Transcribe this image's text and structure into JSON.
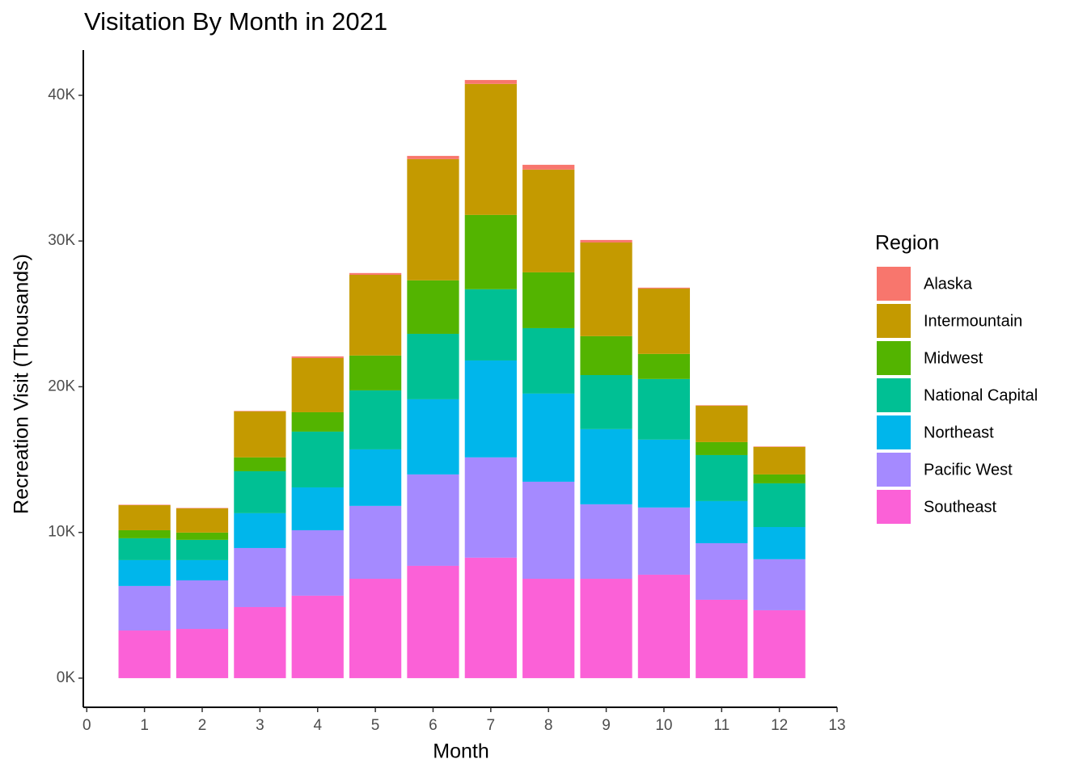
{
  "chart_data": {
    "type": "bar",
    "stacked": true,
    "title": "Visitation By Month in 2021",
    "x_label": "Month",
    "y_label": "Recreation Visit (Thousands)",
    "legend_title": "Region",
    "x": [
      1,
      2,
      3,
      4,
      5,
      6,
      7,
      8,
      9,
      10,
      11,
      12
    ],
    "series": [
      {
        "name": "Southeast",
        "color": "#FB61D7",
        "values": [
          3270,
          3380,
          4880,
          5660,
          6820,
          7710,
          8270,
          6820,
          6820,
          7100,
          5380,
          4660
        ]
      },
      {
        "name": "Pacific West",
        "color": "#A58AFF",
        "values": [
          3055,
          3330,
          4050,
          4490,
          5000,
          6270,
          6880,
          6660,
          5110,
          4610,
          3880,
          3500
        ]
      },
      {
        "name": "Northeast",
        "color": "#00B6EB",
        "values": [
          1775,
          1390,
          2390,
          2940,
          3880,
          5160,
          6650,
          6050,
          5160,
          4660,
          2890,
          2210
        ]
      },
      {
        "name": "National Capital",
        "color": "#00C094",
        "values": [
          1500,
          1390,
          2880,
          3830,
          4050,
          4490,
          4890,
          4490,
          3710,
          4160,
          3160,
          3000
        ]
      },
      {
        "name": "Midwest",
        "color": "#53B400",
        "values": [
          550,
          500,
          950,
          1330,
          2390,
          3670,
          5100,
          3830,
          2670,
          1720,
          890,
          610
        ]
      },
      {
        "name": "Intermountain",
        "color": "#C49A00",
        "values": [
          1720,
          1660,
          3160,
          3720,
          5540,
          8320,
          8990,
          7050,
          6430,
          4490,
          2500,
          1890
        ]
      },
      {
        "name": "Alaska",
        "color": "#F8766D",
        "values": [
          30,
          30,
          30,
          110,
          120,
          220,
          270,
          330,
          170,
          60,
          30,
          30
        ]
      }
    ],
    "legend_order": [
      "Alaska",
      "Intermountain",
      "Midwest",
      "National Capital",
      "Northeast",
      "Pacific West",
      "Southeast"
    ],
    "xlim": [
      -0.06,
      13
    ],
    "xticks": [
      0,
      1,
      2,
      3,
      4,
      5,
      6,
      7,
      8,
      9,
      10,
      11,
      12,
      13
    ],
    "ylim": [
      -2000,
      43100
    ],
    "yticks": [
      {
        "value": 0,
        "label": "0K"
      },
      {
        "value": 10000,
        "label": "10K"
      },
      {
        "value": 20000,
        "label": "20K"
      },
      {
        "value": 30000,
        "label": "30K"
      },
      {
        "value": 40000,
        "label": "40K"
      }
    ],
    "bar_width": 0.9,
    "legend_position": "right",
    "grid": false
  }
}
